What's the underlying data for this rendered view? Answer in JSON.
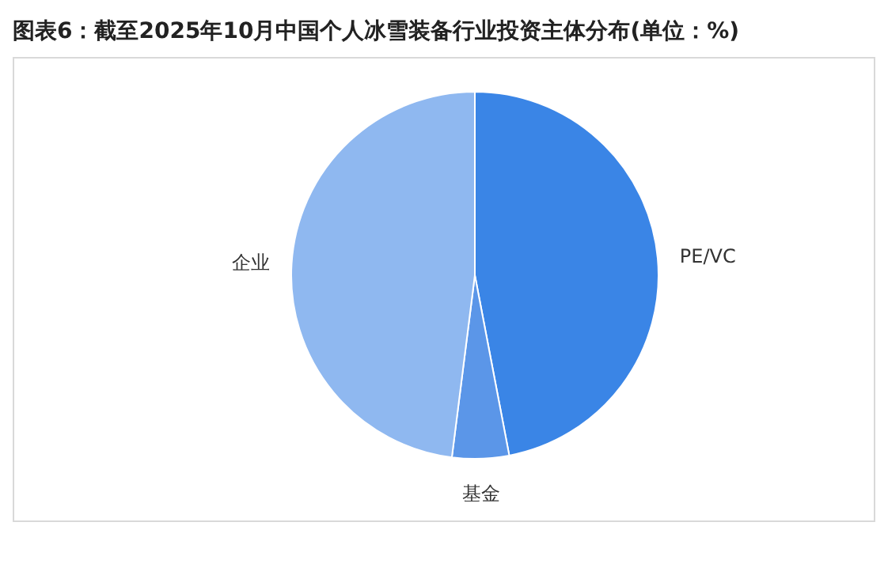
{
  "chart_data": {
    "type": "pie",
    "title": "图表6：截至2025年10月中国个人冰雪装备行业投资主体分布(单位：%)",
    "categories": [
      "PE/VC",
      "基金",
      "企业"
    ],
    "values": [
      47,
      5,
      48
    ],
    "colors": [
      "#3a85e6",
      "#5b96e8",
      "#8fb8f0"
    ]
  }
}
